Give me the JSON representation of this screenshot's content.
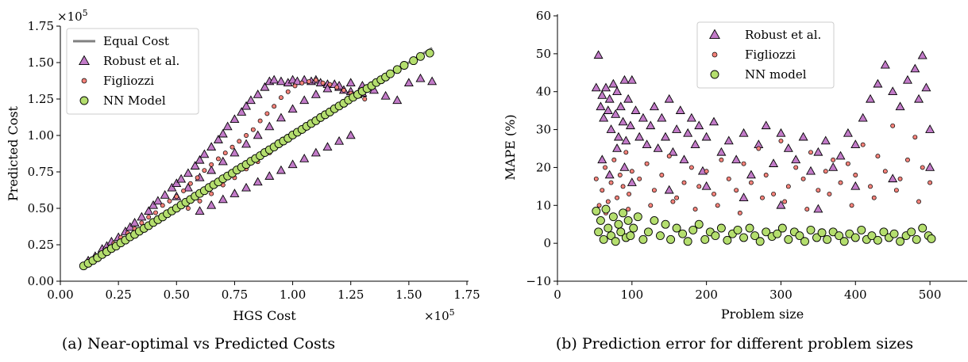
{
  "chart_data": [
    {
      "type": "scatter",
      "xlabel": "HGS Cost",
      "ylabel": "Predicted Cost",
      "caption": "(a) Near-optimal vs Predicted Costs",
      "x_multiplier": "×10",
      "x_multiplier_exp": "5",
      "y_multiplier": "×10",
      "y_multiplier_exp": "5",
      "xlim": [
        0,
        175000
      ],
      "ylim": [
        0,
        175000
      ],
      "xticks": [
        0,
        25000,
        50000,
        75000,
        100000,
        125000,
        150000,
        175000
      ],
      "xtick_labels": [
        "0.00",
        "0.25",
        "0.50",
        "0.75",
        "1.00",
        "1.25",
        "1.50",
        "1.75"
      ],
      "yticks": [
        0,
        25000,
        50000,
        75000,
        100000,
        125000,
        150000,
        175000
      ],
      "ytick_labels": [
        "0.00",
        "0.25",
        "0.50",
        "0.75",
        "1.00",
        "1.25",
        "1.50",
        "1.75"
      ],
      "legend_position": "top-left",
      "reference_line": {
        "name": "Equal Cost",
        "x": [
          10000,
          160000
        ],
        "y": [
          10000,
          160000
        ],
        "color": "#808080"
      },
      "series": [
        {
          "name": "Robust et al.",
          "marker": "triangle",
          "color": "#c27bc8",
          "x": [
            12000,
            15000,
            18000,
            20000,
            22000,
            25000,
            28000,
            30000,
            32000,
            35000,
            38000,
            40000,
            42000,
            45000,
            48000,
            50000,
            52000,
            55000,
            58000,
            60000,
            62000,
            65000,
            68000,
            70000,
            72000,
            75000,
            78000,
            80000,
            82000,
            85000,
            88000,
            90000,
            92000,
            95000,
            98000,
            100000,
            102000,
            105000,
            108000,
            110000,
            112000,
            115000,
            118000,
            120000,
            122000,
            125000,
            128000,
            130000,
            135000,
            140000,
            145000,
            150000,
            155000,
            160000,
            60000,
            65000,
            70000,
            75000,
            80000,
            85000,
            90000,
            95000,
            100000,
            105000,
            110000,
            115000,
            120000,
            125000,
            50000,
            55000,
            60000,
            65000,
            70000,
            75000,
            80000,
            85000,
            90000,
            95000,
            100000,
            105000,
            110000,
            115000,
            120000,
            125000,
            130000
          ],
          "y": [
            14000,
            17000,
            22000,
            24000,
            27000,
            30000,
            34000,
            37000,
            40000,
            44000,
            48000,
            52000,
            55000,
            59000,
            64000,
            67000,
            70000,
            74000,
            79000,
            83000,
            87000,
            92000,
            97000,
            101000,
            106000,
            111000,
            116000,
            120000,
            124000,
            128000,
            133000,
            137000,
            138000,
            137000,
            136000,
            138000,
            137000,
            138000,
            137000,
            138000,
            136000,
            135000,
            135000,
            133000,
            131000,
            130000,
            128000,
            129000,
            131000,
            127000,
            124000,
            136000,
            139000,
            137000,
            48000,
            52000,
            56000,
            60000,
            64000,
            68000,
            72000,
            76000,
            80000,
            84000,
            88000,
            92000,
            96000,
            100000,
            58000,
            64000,
            71000,
            76000,
            82000,
            88000,
            94000,
            100000,
            106000,
            112000,
            118000,
            124000,
            128000,
            132000,
            134000,
            136000,
            134000
          ]
        },
        {
          "name": "Figliozzi",
          "marker": "circle-small",
          "color": "#f4827a",
          "x": [
            11000,
            14000,
            17000,
            20000,
            23000,
            26000,
            29000,
            32000,
            35000,
            38000,
            41000,
            44000,
            47000,
            50000,
            53000,
            56000,
            59000,
            62000,
            65000,
            68000,
            71000,
            74000,
            77000,
            80000,
            83000,
            86000,
            89000,
            92000,
            95000,
            98000,
            101000,
            104000,
            107000,
            110000,
            113000,
            116000,
            119000,
            122000,
            125000,
            128000,
            131000,
            55000,
            60000,
            65000,
            70000,
            75000,
            80000,
            85000,
            90000,
            95000,
            100000,
            105000,
            110000,
            115000,
            120000
          ],
          "y": [
            12000,
            14000,
            18000,
            22000,
            26000,
            30000,
            33000,
            36000,
            40000,
            44000,
            47000,
            52000,
            55000,
            58000,
            62000,
            67000,
            71000,
            76000,
            80000,
            84000,
            88000,
            92000,
            96000,
            100000,
            104000,
            110000,
            115000,
            120000,
            126000,
            130000,
            134000,
            136000,
            137000,
            138000,
            136000,
            135000,
            133000,
            131000,
            129000,
            127000,
            125000,
            50000,
            55000,
            60000,
            66000,
            71000,
            77000,
            82000,
            88000,
            94000,
            99000,
            104000,
            109000,
            115000,
            120000
          ]
        },
        {
          "name": "NN Model",
          "marker": "circle",
          "color": "#b4de6e",
          "x": [
            10000,
            12000,
            14000,
            16000,
            18000,
            20000,
            22000,
            24000,
            26000,
            28000,
            30000,
            32000,
            34000,
            36000,
            38000,
            40000,
            42000,
            44000,
            46000,
            48000,
            50000,
            52000,
            54000,
            56000,
            58000,
            60000,
            62000,
            64000,
            66000,
            68000,
            70000,
            72000,
            74000,
            76000,
            78000,
            80000,
            82000,
            84000,
            86000,
            88000,
            90000,
            92000,
            94000,
            96000,
            98000,
            100000,
            102000,
            104000,
            106000,
            108000,
            110000,
            112000,
            114000,
            116000,
            118000,
            120000,
            122000,
            124000,
            126000,
            128000,
            130000,
            132000,
            134000,
            136000,
            138000,
            140000,
            142000,
            145000,
            148000,
            152000,
            155000,
            159000
          ],
          "y": [
            10500,
            12300,
            14200,
            16100,
            18300,
            20200,
            22400,
            24100,
            26300,
            28200,
            30400,
            32100,
            34300,
            36200,
            38100,
            40300,
            42200,
            44100,
            46300,
            48200,
            50100,
            52300,
            54200,
            56100,
            58300,
            60200,
            62100,
            64300,
            66200,
            68100,
            70300,
            72200,
            74100,
            76300,
            78200,
            80100,
            82300,
            84200,
            86100,
            88300,
            90200,
            92100,
            94300,
            96200,
            98100,
            100300,
            102200,
            104100,
            106300,
            108200,
            110100,
            112300,
            114200,
            116100,
            118300,
            120200,
            122100,
            124300,
            126200,
            128100,
            130300,
            132200,
            134100,
            136300,
            138200,
            140100,
            142300,
            145200,
            148100,
            151300,
            154200,
            156500
          ]
        }
      ]
    },
    {
      "type": "scatter",
      "xlabel": "Problem size",
      "ylabel": "MAPE (%)",
      "caption": "(b) Prediction error for different problem sizes",
      "xlim": [
        0,
        550
      ],
      "ylim": [
        -10,
        60
      ],
      "xticks": [
        0,
        100,
        200,
        300,
        400,
        500
      ],
      "xtick_labels": [
        "0",
        "100",
        "200",
        "300",
        "400",
        "500"
      ],
      "yticks": [
        -10,
        0,
        10,
        20,
        30,
        40,
        50,
        60
      ],
      "ytick_labels": [
        "−10",
        "0",
        "10",
        "20",
        "30",
        "40",
        "50",
        "60"
      ],
      "legend_position": "top-center",
      "series": [
        {
          "name": "Robust et al.",
          "marker": "triangle",
          "color": "#c27bc8",
          "x": [
            52,
            55,
            58,
            60,
            62,
            65,
            68,
            70,
            72,
            75,
            78,
            80,
            82,
            85,
            88,
            90,
            92,
            95,
            98,
            100,
            105,
            110,
            115,
            120,
            125,
            130,
            135,
            140,
            145,
            150,
            155,
            160,
            165,
            170,
            175,
            180,
            185,
            190,
            195,
            200,
            210,
            220,
            230,
            240,
            250,
            260,
            270,
            280,
            290,
            300,
            310,
            320,
            330,
            340,
            350,
            360,
            370,
            380,
            390,
            400,
            410,
            420,
            430,
            440,
            450,
            460,
            470,
            480,
            485,
            490,
            495,
            500,
            60,
            70,
            80,
            90,
            100,
            150,
            200,
            250,
            300,
            350,
            400,
            450,
            500
          ],
          "y": [
            41,
            49.6,
            36,
            39,
            33,
            41,
            35,
            38,
            30,
            42,
            34,
            40,
            28,
            36,
            32,
            43,
            27,
            38,
            31,
            43,
            35,
            28,
            33,
            26,
            31,
            36,
            25,
            33,
            28,
            38,
            24,
            30,
            35,
            22,
            29,
            33,
            26,
            31,
            19,
            28,
            32,
            24,
            27,
            22,
            29,
            18,
            26,
            31,
            21,
            29,
            25,
            22,
            28,
            19,
            24,
            27,
            20,
            23,
            29,
            26,
            33,
            38,
            42,
            47,
            40,
            36,
            43,
            46,
            38,
            49.5,
            41,
            30,
            22,
            18,
            25,
            20,
            16,
            14,
            15,
            12,
            10,
            9,
            15,
            17,
            20
          ]
        },
        {
          "name": "Figliozzi",
          "marker": "circle-small",
          "color": "#f4827a",
          "x": [
            52,
            56,
            60,
            64,
            68,
            72,
            76,
            80,
            84,
            88,
            92,
            96,
            100,
            110,
            120,
            130,
            140,
            150,
            160,
            170,
            180,
            190,
            200,
            210,
            220,
            230,
            240,
            250,
            260,
            270,
            280,
            290,
            300,
            310,
            320,
            330,
            340,
            350,
            360,
            370,
            380,
            390,
            400,
            410,
            420,
            430,
            440,
            450,
            460,
            470,
            480,
            490,
            500,
            65,
            95,
            125,
            155,
            185,
            215,
            245,
            275,
            305,
            335,
            365,
            395,
            425,
            455,
            485
          ],
          "y": [
            17,
            10,
            14,
            20,
            11,
            16,
            22,
            12,
            18,
            15,
            24,
            13,
            19,
            17,
            21,
            14,
            18,
            23,
            12,
            16,
            20,
            15,
            19,
            13,
            22,
            17,
            14,
            21,
            16,
            25,
            18,
            13,
            27,
            15,
            20,
            17,
            24,
            14,
            19,
            22,
            16,
            21,
            18,
            26,
            15,
            23,
            19,
            31,
            17,
            22,
            28,
            20,
            16,
            8,
            9,
            10,
            11,
            9,
            10,
            8,
            12,
            11,
            9,
            13,
            10,
            12,
            14,
            11
          ]
        },
        {
          "name": "NN model",
          "marker": "circle",
          "color": "#b4de6e",
          "x": [
            52,
            55,
            58,
            62,
            65,
            68,
            72,
            75,
            78,
            82,
            85,
            88,
            92,
            95,
            98,
            102,
            108,
            115,
            122,
            130,
            138,
            145,
            152,
            160,
            168,
            175,
            182,
            190,
            198,
            205,
            212,
            220,
            228,
            235,
            242,
            250,
            258,
            265,
            272,
            280,
            288,
            295,
            302,
            310,
            318,
            325,
            332,
            340,
            348,
            355,
            362,
            370,
            378,
            385,
            392,
            400,
            408,
            415,
            422,
            430,
            438,
            445,
            452,
            460,
            468,
            475,
            482,
            490,
            498,
            502
          ],
          "y": [
            8.5,
            3,
            6,
            1,
            9,
            4,
            2,
            7,
            0.5,
            5,
            3,
            8,
            1.5,
            6,
            2,
            4,
            7,
            1,
            3,
            6,
            2,
            5,
            1,
            4,
            2.5,
            0.5,
            3.5,
            5,
            1,
            3,
            2,
            4,
            0.8,
            2.5,
            3.5,
            1.5,
            4,
            2,
            0.5,
            3,
            1.8,
            2.5,
            4,
            1,
            3,
            2,
            0.5,
            3.5,
            1.5,
            2.8,
            1,
            3,
            2,
            0.5,
            2.5,
            1.5,
            3.5,
            1,
            2,
            0.8,
            3,
            1.5,
            2.5,
            0.5,
            2,
            3,
            1,
            4,
            2,
            1.2
          ]
        }
      ]
    }
  ]
}
